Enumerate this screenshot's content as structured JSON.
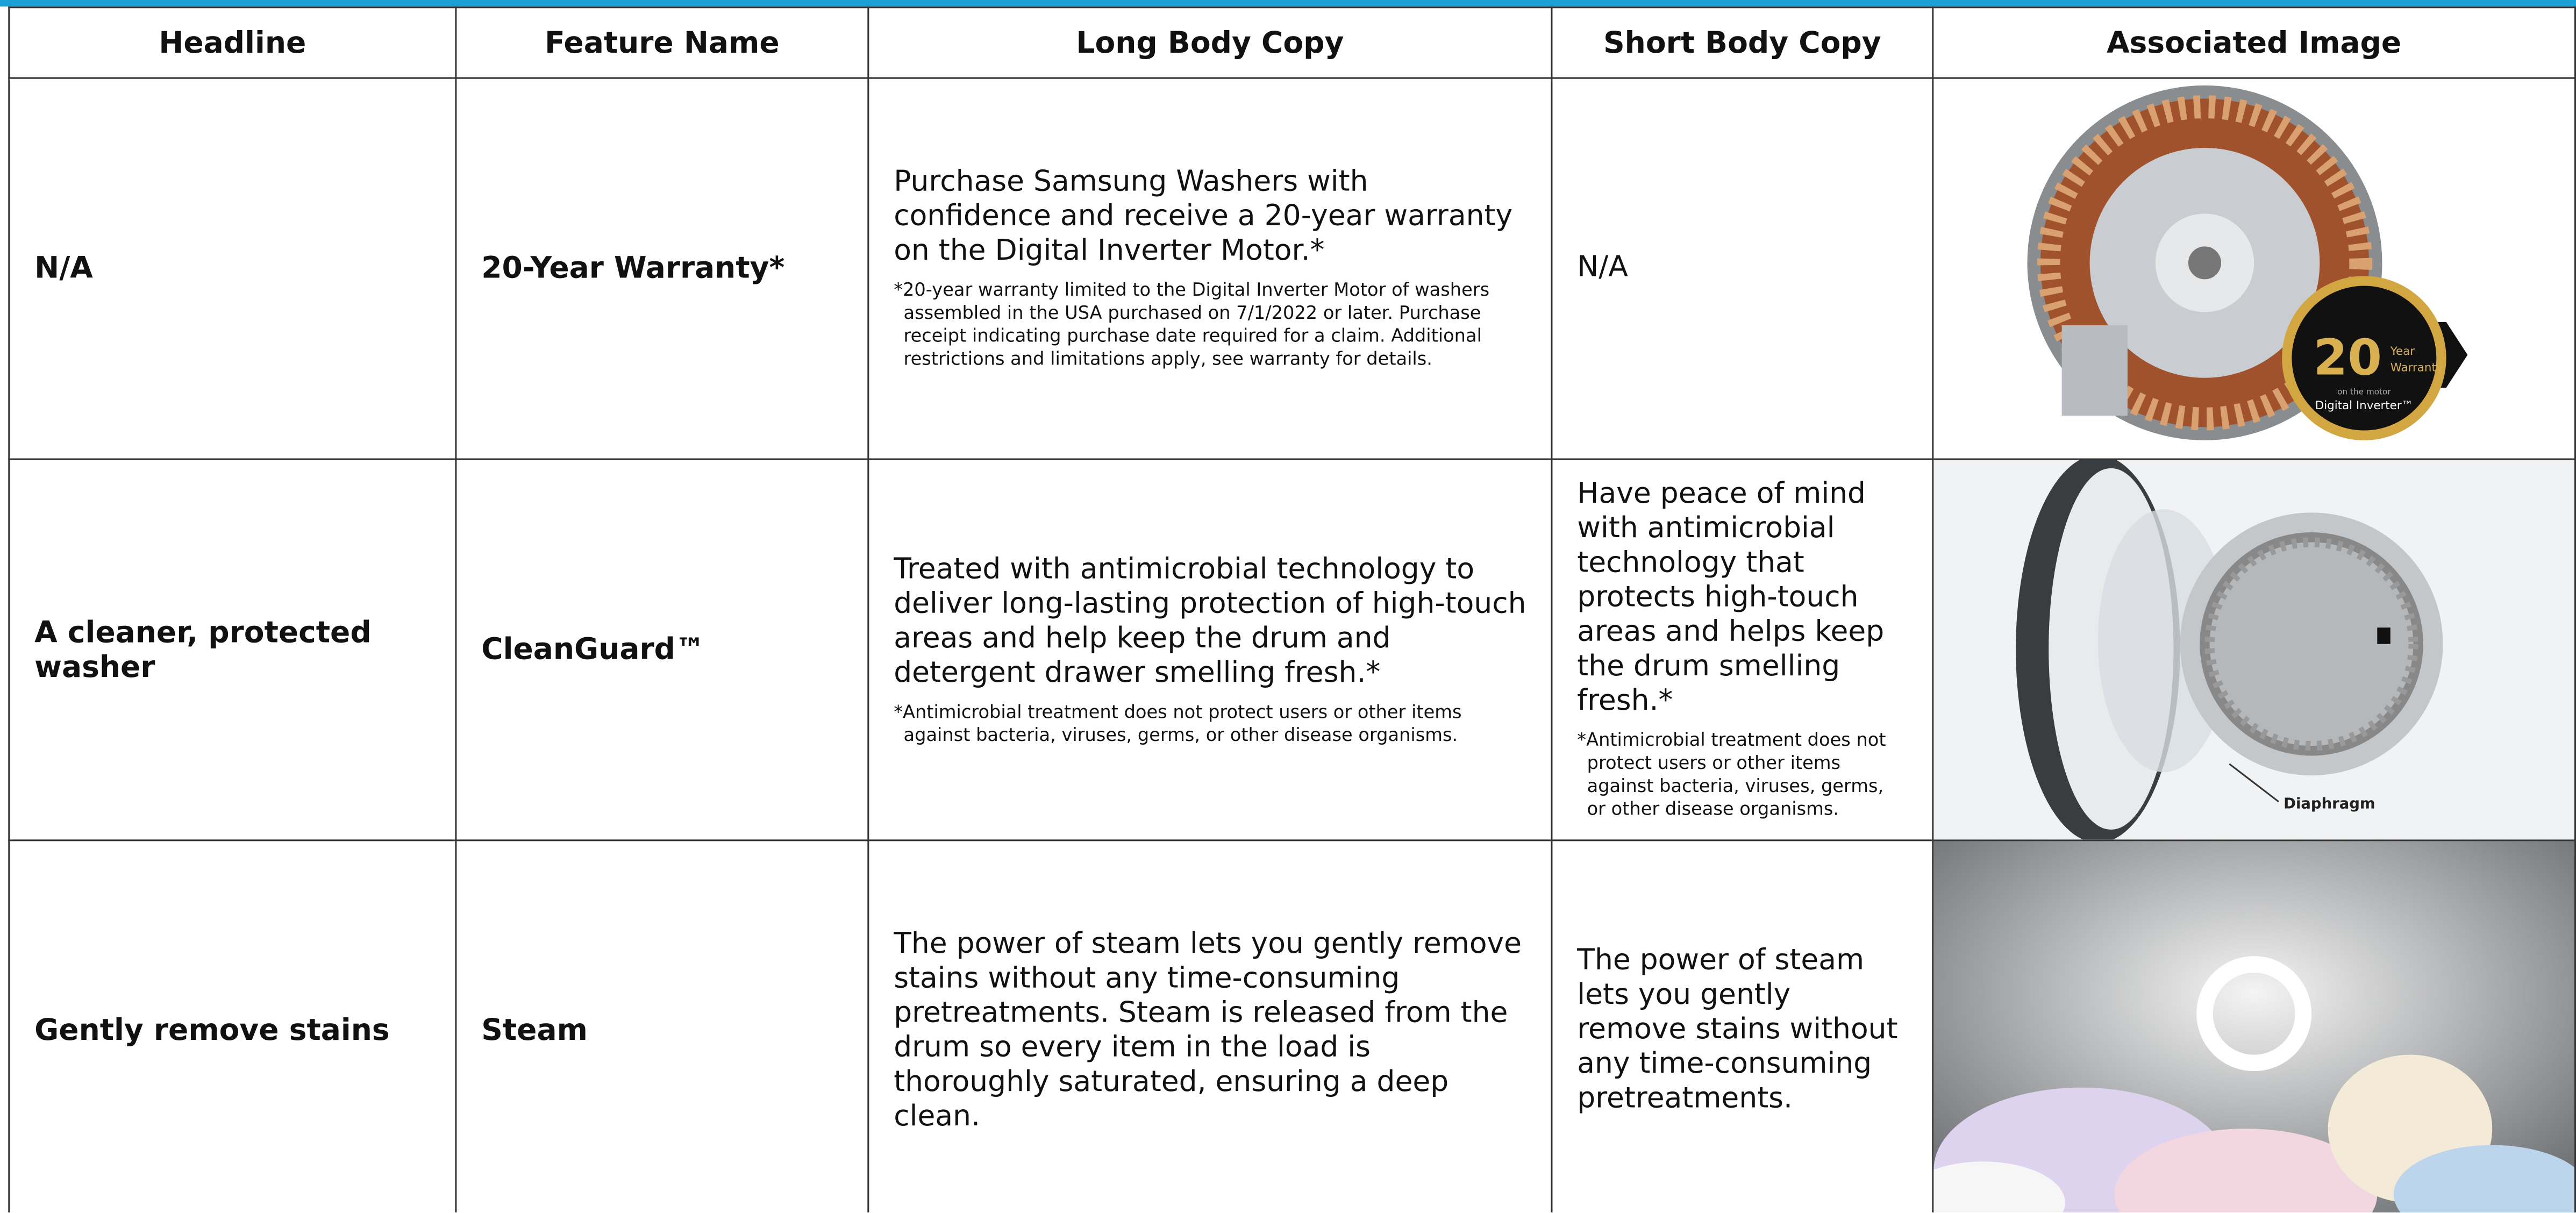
{
  "table": {
    "columns": [
      "Headline",
      "Feature Name",
      "Long Body Copy",
      "Short Body Copy",
      "Associated Image"
    ],
    "rows": [
      {
        "headline": "N/A",
        "feature": "20-Year Warranty*",
        "long_body": "Purchase Samsung Washers with confidence and receive a 20-year warranty on the Digital Inverter Motor.*",
        "long_note": "*20-year warranty limited to the Digital Inverter Motor of washers assembled in the USA purchased on 7/1/2022 or later. Purchase receipt indicating purchase date required for a claim. Additional restrictions and limitations apply, see warranty for details.",
        "short_body": "N/A",
        "image_text": {
          "number": "20",
          "year": "Year",
          "warranty": "Warranty",
          "motor": "on the motor",
          "brand": "Digital Inverter™"
        }
      },
      {
        "headline": "A cleaner, protected washer",
        "feature": "CleanGuard™",
        "long_body": "Treated with antimicrobial technology to deliver long-lasting protection of high-touch areas and help keep the drum and detergent drawer smelling fresh.*",
        "long_note": "*Antimicrobial treatment does not protect users or other items against bacteria, viruses, germs, or other disease organisms.",
        "short_body": "Have peace of mind with antimicrobial technology that protects high-touch areas and helps keep the drum smelling fresh.*",
        "short_note": "*Antimicrobial treatment does not protect users or other items against bacteria, viruses, germs, or other disease organisms.",
        "image_text": {
          "label": "Diaphragm"
        }
      },
      {
        "headline": "Gently remove stains",
        "feature": "Steam",
        "long_body": "The power of steam lets you gently remove stains without any time-consuming pretreatments. Steam is released from the drum so every item in the load is thoroughly saturated, ensuring a deep clean.",
        "short_body": "The power of steam lets you gently remove stains without any time-consuming pretreatments."
      }
    ]
  }
}
